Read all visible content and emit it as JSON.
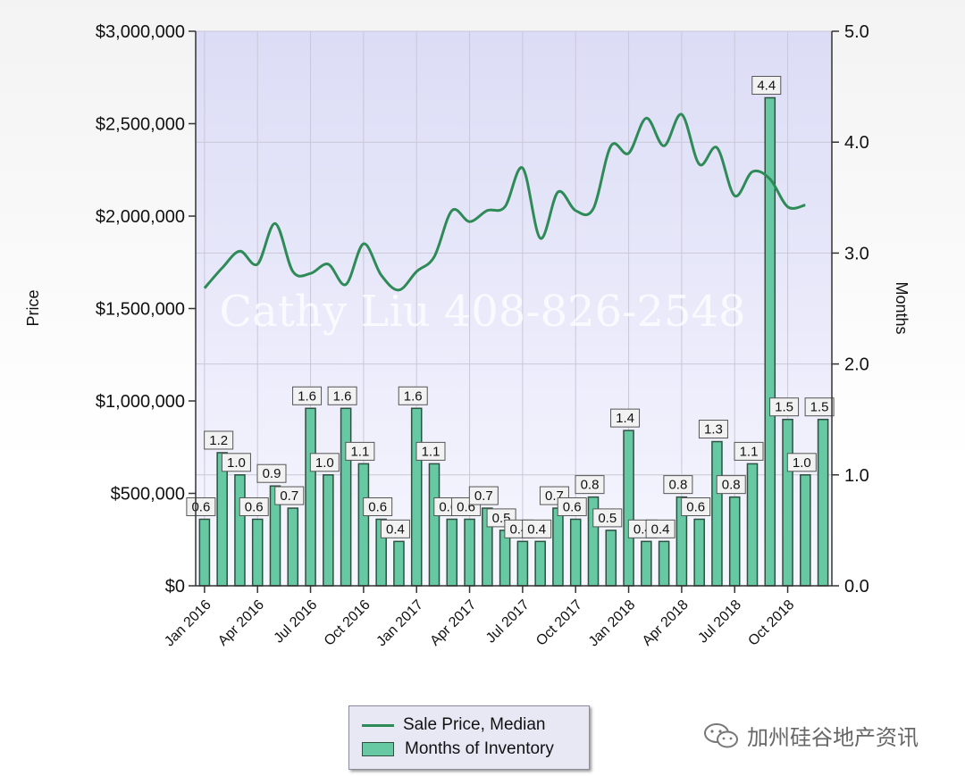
{
  "chart_data": {
    "type": "bar+line",
    "title": "",
    "left_axis": {
      "label": "Price",
      "min": 0,
      "max": 3000000,
      "ticks": [
        "$0",
        "$500,000",
        "$1,000,000",
        "$1,500,000",
        "$2,000,000",
        "$2,500,000",
        "$3,000,000"
      ]
    },
    "right_axis": {
      "label": "Months",
      "min": 0,
      "max": 5,
      "ticks": [
        "0.0",
        "1.0",
        "2.0",
        "3.0",
        "4.0",
        "5.0"
      ]
    },
    "x_tick_labels": [
      "Jan 2016",
      "Apr 2016",
      "Jul 2016",
      "Oct 2016",
      "Jan 2017",
      "Apr 2017",
      "Jul 2017",
      "Oct 2017",
      "Jan 2018",
      "Apr 2018",
      "Jul 2018",
      "Oct 2018"
    ],
    "x_tick_month_index": [
      0,
      3,
      6,
      9,
      12,
      15,
      18,
      21,
      24,
      27,
      30,
      33
    ],
    "grid": true,
    "series": [
      {
        "name": "Sale Price, Median",
        "type": "line",
        "axis": "left",
        "color": "#2e8b57",
        "values": [
          1610000,
          1720000,
          1810000,
          1740000,
          1960000,
          1700000,
          1690000,
          1740000,
          1630000,
          1850000,
          1680000,
          1600000,
          1700000,
          1780000,
          2030000,
          1970000,
          2030000,
          2050000,
          2260000,
          1880000,
          2130000,
          2030000,
          2040000,
          2380000,
          2340000,
          2530000,
          2380000,
          2550000,
          2280000,
          2370000,
          2110000,
          2240000,
          2200000,
          2050000,
          2060000
        ]
      },
      {
        "name": "Months of Inventory",
        "type": "bar",
        "axis": "right",
        "color": "#66c9a4",
        "values": [
          0.6,
          1.2,
          1.0,
          0.6,
          0.9,
          0.7,
          1.6,
          1.0,
          1.6,
          1.1,
          0.6,
          0.4,
          1.6,
          1.1,
          0.6,
          0.6,
          0.7,
          0.5,
          0.4,
          0.4,
          0.7,
          0.6,
          0.8,
          0.5,
          1.4,
          0.4,
          0.4,
          0.8,
          0.6,
          1.3,
          0.8,
          1.1,
          4.4,
          1.5,
          1.0,
          1.5
        ],
        "labels": [
          "0.6",
          "1.2",
          "1.0",
          "0.6",
          "0.9",
          "0.7",
          "1.6",
          "1.0",
          "1.6",
          "1.1",
          "0.6",
          "0.4",
          "1.6",
          "1.1",
          "0.6",
          "0.6",
          "0.7",
          "0.5",
          "0.4",
          "0.4",
          "0.7",
          "0.6",
          "0.8",
          "0.5",
          "1.4",
          "0.4",
          "0.4",
          "0.8",
          "0.6",
          "1.3",
          "0.8",
          "1.1",
          "4.4",
          "1.5",
          "1.0",
          "1.5"
        ]
      }
    ],
    "legend": {
      "position": "bottom-center",
      "entries": [
        "Sale Price, Median",
        "Months of Inventory"
      ]
    },
    "watermark": "Cathy Liu 408-826-2548"
  },
  "colors": {
    "plot_bg_top": "#dcdcf6",
    "plot_bg_bottom": "#f6f6ff",
    "bar_fill": "#66c9a4",
    "bar_stroke": "#2f4f3f",
    "line": "#2e8b57"
  },
  "footer": {
    "wechat_account": "加州硅谷地产资讯",
    "icon": "wechat-icon"
  }
}
